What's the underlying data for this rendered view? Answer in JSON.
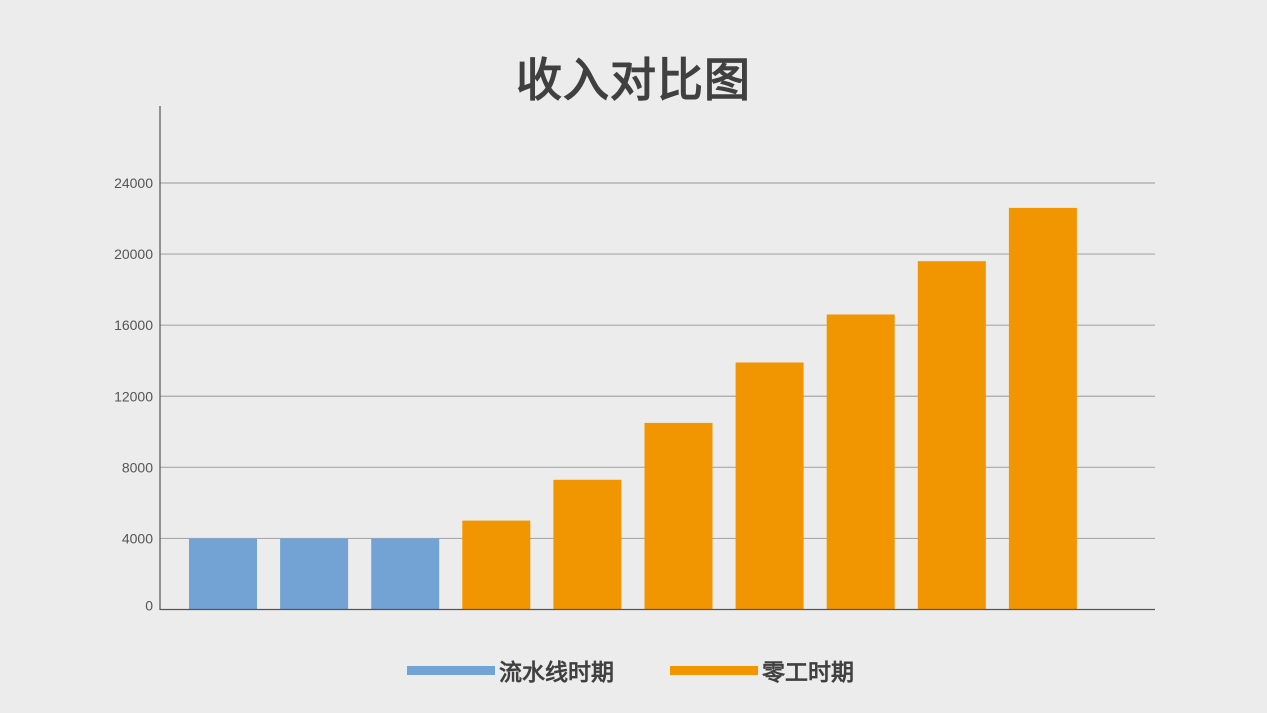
{
  "chart_data": {
    "type": "bar",
    "title": "收入对比图",
    "xlabel": "",
    "ylabel": "",
    "ylim": [
      0,
      28000
    ],
    "yticks": [
      0,
      4000,
      8000,
      12000,
      16000,
      20000,
      24000
    ],
    "grid": true,
    "legend_position": "bottom",
    "series": [
      {
        "name": "流水线时期",
        "color": "#73a3d4",
        "values": [
          4000,
          4000,
          4000,
          null,
          null,
          null,
          null,
          null,
          null,
          null
        ]
      },
      {
        "name": "零工时期",
        "color": "#f29600",
        "values": [
          null,
          null,
          null,
          5000,
          7300,
          10500,
          13900,
          16600,
          19600,
          22600
        ]
      }
    ]
  }
}
